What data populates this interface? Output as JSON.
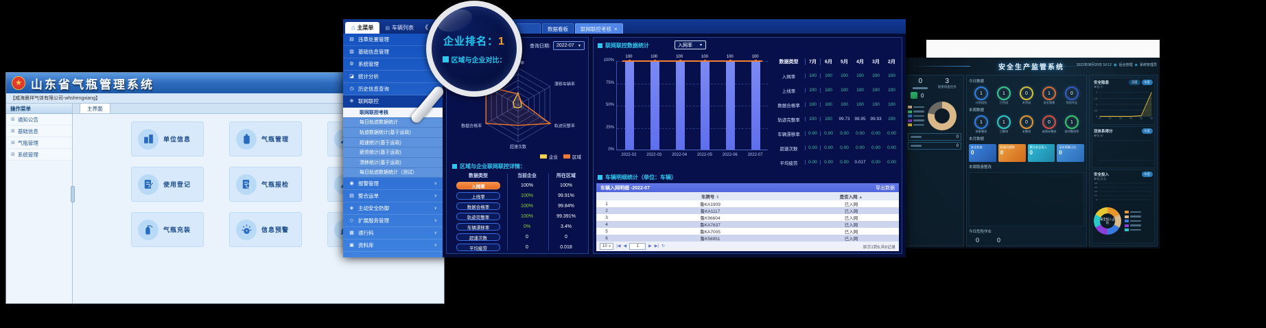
{
  "gas_app": {
    "window_title": "山东省气瓶管理系统",
    "company_bar": "【威海晨祥气体有限公司-whshengxiang】",
    "menu_header": "操作菜单",
    "menu_items": [
      {
        "label": "通知公告"
      },
      {
        "label": "基础信息"
      },
      {
        "label": "气瓶管理"
      },
      {
        "label": "系统管理"
      }
    ],
    "main_tab": "主界面",
    "tiles": [
      {
        "label": "单位信息",
        "icon": "building"
      },
      {
        "label": "气瓶管理",
        "icon": "cylinder"
      },
      {
        "label": "使用登记",
        "icon": "register"
      },
      {
        "label": "气瓶报检",
        "icon": "inspect"
      },
      {
        "label": "气瓶充装",
        "icon": "extinguisher"
      },
      {
        "label": "信息预警",
        "icon": "alert"
      },
      {
        "label": "",
        "icon": "person"
      },
      {
        "label": "",
        "icon": "wrench"
      },
      {
        "label": "",
        "icon": "chart"
      }
    ]
  },
  "dash": {
    "topbar": {
      "home_tab": "主菜单",
      "vehicle_tab": "车辆列表",
      "collapse": "《",
      "tabs": [
        {
          "label": "",
          "stub": true
        },
        {
          "label": "数据看板",
          "active": false
        },
        {
          "label": "联网联控考核",
          "active": true,
          "close": "×"
        }
      ]
    },
    "sidebar": [
      {
        "label": "违章处置管理",
        "icon": "▤",
        "chevron": true
      },
      {
        "label": "基础信息管理",
        "icon": "▥",
        "chevron": true
      },
      {
        "label": "系统管理",
        "icon": "⚙",
        "chevron": false
      },
      {
        "label": "统计分析",
        "icon": "◪",
        "chevron": true
      },
      {
        "label": "历史信息查询",
        "icon": "◷",
        "chevron": true
      },
      {
        "label": "联网联控",
        "icon": "⊕",
        "chevron": false,
        "open": true,
        "children": [
          {
            "label": "联网联控考核",
            "active": true
          },
          {
            "label": "每日轨迹数据统计"
          },
          {
            "label": "轨迹数据统计(基于运政)"
          },
          {
            "label": "超速统计(基于运政)"
          },
          {
            "label": "疲劳统计(基于运政)"
          },
          {
            "label": "漂移统计(基于运政)"
          },
          {
            "label": "每日轨迹数据统计（测试）"
          }
        ]
      },
      {
        "label": "报警管理",
        "icon": "◉",
        "chevron": true
      },
      {
        "label": "整合运单",
        "icon": "▤",
        "chevron": true
      },
      {
        "label": "主动安全防御",
        "icon": "◈",
        "chevron": true
      },
      {
        "label": "扩展服务管理",
        "icon": "◇",
        "chevron": true
      },
      {
        "label": "通行码",
        "icon": "▦",
        "chevron": true
      },
      {
        "label": "资料库",
        "icon": "▣",
        "chevron": true
      }
    ],
    "magnifier": {
      "rank_label": "企业排名：",
      "rank_value": "1",
      "section": "区域与企业对比："
    },
    "left_panel": {
      "query_label": "查询日期:",
      "query_value": "2022-07",
      "legend": [
        {
          "label": "企业",
          "color": "#f2d24b"
        },
        {
          "label": "区域",
          "color": "#f07a2e"
        }
      ],
      "detail_title": "区域与企业联网联控详情：",
      "detail_headers": [
        "数据类型",
        "当前企业",
        "所在区域"
      ],
      "detail_rows": [
        {
          "type": "入网率",
          "company": "100%",
          "region": "100%",
          "orange": true,
          "green": false
        },
        {
          "type": "上线率",
          "company": "100%",
          "region": "99.91%",
          "orange": false,
          "green": true
        },
        {
          "type": "数据合格率",
          "company": "100%",
          "region": "99.84%",
          "orange": false,
          "green": true
        },
        {
          "type": "轨迹完整率",
          "company": "100%",
          "region": "99.391%",
          "orange": false,
          "green": true
        },
        {
          "type": "车辆漂移率",
          "company": "0%",
          "region": "3.4%",
          "orange": false,
          "green": true
        },
        {
          "type": "超速次数",
          "company": "0",
          "region": "0",
          "orange": false,
          "green": false
        },
        {
          "type": "平均疲劳",
          "company": "0",
          "region": "0.018",
          "orange": false,
          "green": false
        }
      ]
    },
    "right_panel": {
      "chart_title": "联网联控数据统计",
      "chart_select": "入网率",
      "month_table": {
        "headers": [
          "数据类型",
          "7月",
          "6月",
          "5月",
          "4月",
          "3月",
          "2月"
        ],
        "rows": [
          {
            "label": "入网率",
            "values": [
              "100",
              "100",
              "100",
              "100",
              "100",
              "100"
            ]
          },
          {
            "label": "上线率",
            "values": [
              "100",
              "100",
              "100",
              "100",
              "100",
              "100"
            ]
          },
          {
            "label": "数据合格率",
            "values": [
              "100",
              "100",
              "100",
              "100",
              "100",
              "100"
            ]
          },
          {
            "label": "轨迹完整率",
            "values": [
              "100",
              "100",
              "99.73",
              "98.95",
              "99.93",
              "100"
            ]
          },
          {
            "label": "车辆漂移率",
            "values": [
              "0.00",
              "0.00",
              "0.00",
              "0.00",
              "0.00",
              "0.00"
            ]
          },
          {
            "label": "超速次数",
            "values": [
              "0.00",
              "0.00",
              "0.00",
              "0.00",
              "0.00",
              "0.00"
            ]
          },
          {
            "label": "平均疲劳",
            "values": [
              "0.00",
              "0.00",
              "0.00",
              "0.017",
              "0.00",
              "0.00"
            ]
          }
        ]
      },
      "vehicle_title": "车辆明细统计（单位：车辆）",
      "vehicle_table": {
        "bar_title": "车辆入网明细 -2022-07",
        "export_label": "导出数据",
        "col_plate": "车牌号",
        "col_status": "是否入网",
        "rows": [
          {
            "no": "1",
            "plate": "鲁KA1909",
            "status": "已入网"
          },
          {
            "no": "2",
            "plate": "鲁KA1117",
            "status": "已入网"
          },
          {
            "no": "3",
            "plate": "鲁K96604",
            "status": "已入网"
          },
          {
            "no": "4",
            "plate": "鲁KA7637",
            "status": "已入网"
          },
          {
            "no": "5",
            "plate": "鲁KA7005",
            "status": "已入网"
          },
          {
            "no": "6",
            "plate": "鲁K56951",
            "status": "已入网"
          }
        ],
        "page_size": "10",
        "page": "1",
        "info": "显示1到6,共6记录"
      }
    }
  },
  "safety": {
    "title": "安全生产监管系统",
    "datetime": "2022年08月20日 16:12",
    "admin_link": "后台管理",
    "admin_user": "系统管理员",
    "left": {
      "stat1": {
        "value": "0",
        "label": ""
      },
      "stat2": {
        "value": "3",
        "label": "隐患排查任务"
      },
      "mini_value": "0",
      "score_donut_colors": [
        "#d9b98a",
        "#6a6a62"
      ],
      "score_legend_colors": [
        "#d9b98a",
        "#3ac87a",
        "#3a7ae0",
        "#8a40d8",
        "#e8c832"
      ],
      "box_values": [
        "0",
        "0"
      ]
    },
    "today": {
      "label": "今日数据",
      "rings": [
        {
          "label": "计划巡检",
          "value": "1",
          "color": "#2f7fe8"
        },
        {
          "label": "已完成",
          "value": "1",
          "color": "#35c98a"
        },
        {
          "label": "未完成",
          "value": "0",
          "color": "#d8c030"
        },
        {
          "label": "安全隐患",
          "value": "1",
          "color": "#e86a2a"
        },
        {
          "label": "危险作业",
          "value": "0",
          "color": "#2f58c8"
        }
      ]
    },
    "week": {
      "label": "本周数据",
      "rings": [
        {
          "label": "隐患整改",
          "value": "1",
          "color": "#2f7fe8"
        },
        {
          "label": "已整改",
          "value": "1",
          "color": "#2ac8c8"
        },
        {
          "label": "未整改",
          "value": "0",
          "color": "#e8962a"
        },
        {
          "label": "逾期未整改",
          "value": "0",
          "color": "#e84a3a"
        },
        {
          "label": "按时整改率",
          "value": "1",
          "color": "#35c96a"
        }
      ]
    },
    "month": {
      "label": "本月数据",
      "cards": [
        {
          "label": "安全检查",
          "value": "0",
          "c1": "#3a86e0",
          "c2": "#2558a8"
        },
        {
          "label": "检查问题数",
          "value": "0",
          "c1": "#eda23f",
          "c2": "#d2691e"
        },
        {
          "label": "累计安全投入",
          "value": "0",
          "c1": "#2fbcd8",
          "c2": "#1f86a8"
        },
        {
          "label": "全年预算占比",
          "value": "0",
          "c1": "#4a9ae0",
          "c2": "#2a6ab8"
        }
      ]
    },
    "week_fix_label": "本周隐患整改",
    "danger": {
      "label": "今日危险作业",
      "values": [
        "0",
        "0"
      ]
    },
    "charts": {
      "c1": {
        "title": "安全隐患",
        "unit": "单位:个",
        "pills": [
          "月度",
          "年度"
        ]
      },
      "c2": {
        "title": "双体系得分",
        "unit": "单位:分",
        "pills": [
          "年度"
        ]
      },
      "c3": {
        "title": "安全投入",
        "unit": "单位:万元",
        "pills": [
          "年度"
        ]
      },
      "donut_label": "安全投入占比",
      "donut_colors": [
        "#e8962a",
        "#d9b98a",
        "#3a7ae0",
        "#8a40d8",
        "#2ac8c8",
        "#e8c832"
      ]
    }
  },
  "chart_data": [
    {
      "type": "radar",
      "title": "区域与企业对比",
      "axes": [
        "入网率",
        "漂移车辆率",
        "轨迹完整率",
        "超速次数",
        "数据合格率",
        "上线率"
      ],
      "rings": 6,
      "series": [
        {
          "name": "企业",
          "color": "#f2d24b",
          "values": [
            0.32,
            0.1,
            0.1,
            0.08,
            0.12,
            0.15
          ]
        },
        {
          "name": "区域",
          "color": "#f07a2e",
          "values": [
            0.3,
            0.12,
            1,
            0.55,
            1,
            1
          ]
        }
      ],
      "legend_position": "bottom-right"
    },
    {
      "type": "bar",
      "title": "联网联控数据统计",
      "metric": "入网率",
      "categories": [
        "2022-02",
        "2022-03",
        "2022-04",
        "2022-05",
        "2022-06",
        "2022-07"
      ],
      "values": [
        100,
        100,
        100,
        100,
        100,
        100
      ],
      "bar_labels": [
        "100",
        "100",
        "100",
        "100",
        "100",
        "100"
      ],
      "ylabels": [
        "100%",
        "75%",
        "50%",
        "25%",
        "0%"
      ],
      "ylim": [
        0,
        100
      ],
      "bar_color": "#5f6eec",
      "line_color": "#f08030",
      "grid": "dashed"
    },
    {
      "type": "line",
      "title": "安全隐患",
      "x": [
        "01",
        "02",
        "03",
        "04",
        "05",
        "06"
      ],
      "values": [
        0,
        0,
        0,
        0,
        0.05,
        2
      ],
      "ylabels": [
        "2",
        "1.5",
        "1",
        "0.5",
        "0"
      ],
      "ylim": [
        0,
        2
      ],
      "color": "#e8c040"
    },
    {
      "type": "line",
      "title": "安全投入",
      "x": [],
      "values": [],
      "ylabels": [
        "0.8",
        "0.6",
        "0.4",
        "0.2",
        "0"
      ],
      "ylim": [
        0,
        0.8
      ],
      "color": "#e8c040"
    }
  ]
}
